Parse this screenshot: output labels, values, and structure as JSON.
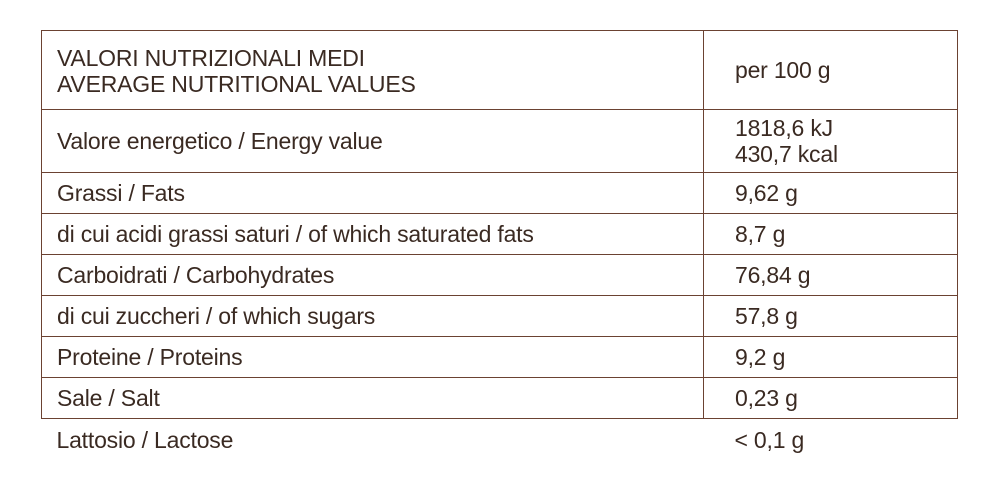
{
  "table": {
    "header": {
      "label_it": "VALORI NUTRIZIONALI MEDI",
      "label_en": "AVERAGE NUTRITIONAL VALUES",
      "per": "per 100 g"
    },
    "energy": {
      "label": "Valore energetico / Energy value",
      "kj": "1818,6 kJ",
      "kcal": "430,7 kcal"
    },
    "rows": [
      {
        "label": "Grassi / Fats",
        "value": "9,62 g"
      },
      {
        "label": "di cui acidi grassi saturi / of which saturated fats",
        "value": "8,7 g"
      },
      {
        "label": "Carboidrati / Carbohydrates",
        "value": "76,84 g"
      },
      {
        "label": "di cui zuccheri / of which sugars",
        "value": "57,8 g"
      },
      {
        "label": "Proteine / Proteins",
        "value": "9,2 g"
      },
      {
        "label": "Sale / Salt",
        "value": "0,23 g"
      }
    ],
    "lactose": {
      "label": "Lattosio / Lactose",
      "value": "< 0,1 g"
    }
  },
  "colors": {
    "border": "#6b4232",
    "text": "#3a2a22",
    "background": "#ffffff"
  }
}
